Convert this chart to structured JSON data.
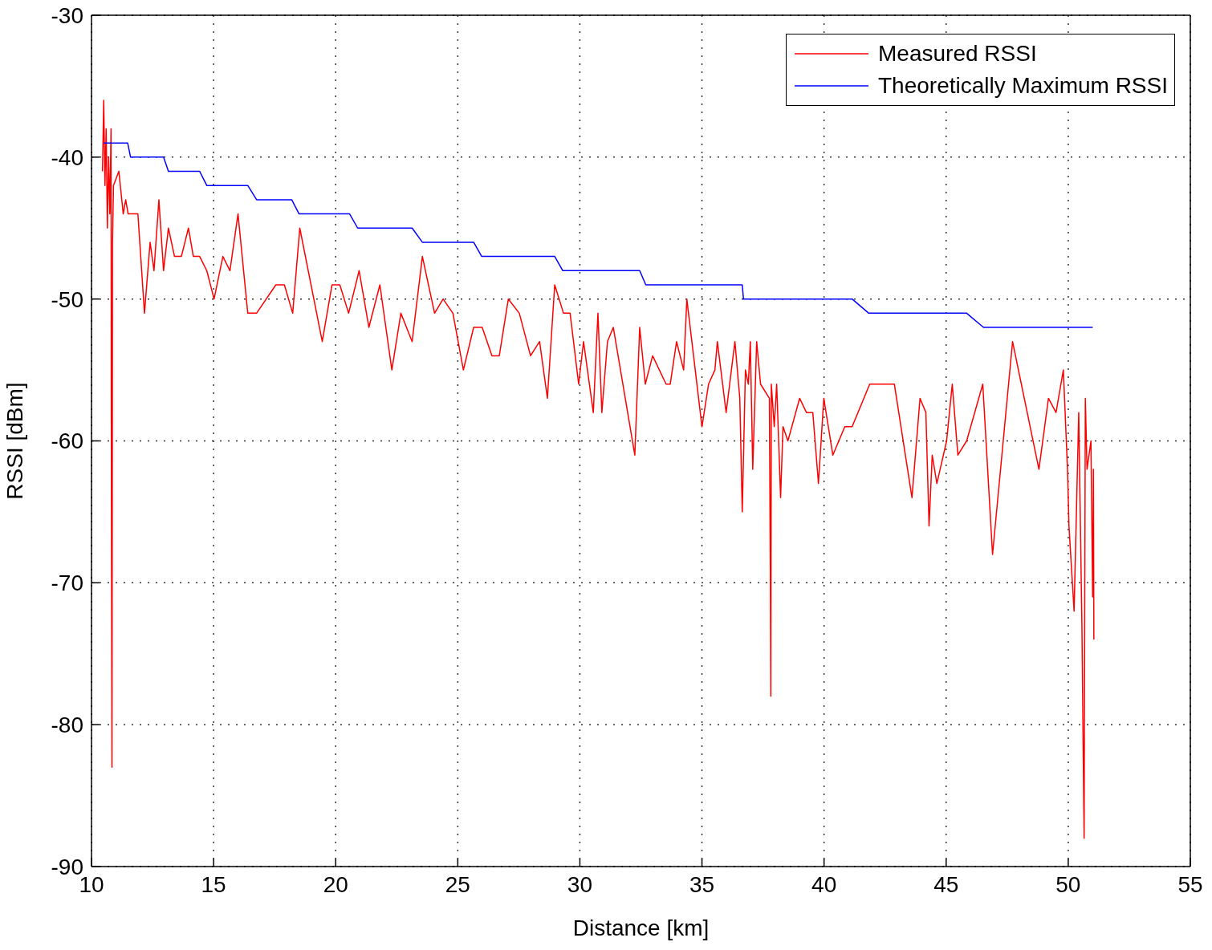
{
  "chart_data": {
    "type": "line",
    "xlabel": "Distance [km]",
    "ylabel": "RSSI [dBm]",
    "xlim": [
      10,
      55
    ],
    "xticks": [
      10,
      15,
      20,
      25,
      30,
      35,
      40,
      45,
      50,
      55
    ],
    "ylim": [
      -90,
      -30
    ],
    "yticks": [
      -90,
      -80,
      -70,
      -60,
      -50,
      -40,
      -30
    ],
    "grid": true,
    "legend": "top right",
    "marker": "none",
    "line_style": "solid",
    "series": [
      {
        "name": "Measured RSSI",
        "color": "#ff0000",
        "x": [
          10.45,
          10.5,
          10.55,
          10.6,
          10.65,
          10.7,
          10.75,
          10.8,
          10.81,
          10.82,
          10.83,
          10.84,
          10.86,
          10.9,
          11.12,
          11.3,
          11.4,
          11.5,
          11.9,
          12.17,
          12.4,
          12.56,
          12.76,
          12.95,
          13.15,
          13.4,
          13.68,
          13.97,
          14.17,
          14.43,
          14.72,
          15.02,
          15.38,
          15.67,
          16.0,
          16.4,
          16.76,
          17.55,
          17.9,
          18.24,
          18.53,
          19.45,
          19.85,
          20.17,
          20.53,
          20.96,
          21.36,
          21.81,
          22.3,
          22.67,
          23.13,
          23.55,
          24.05,
          24.4,
          24.8,
          25.23,
          25.65,
          26.0,
          26.4,
          26.7,
          27.07,
          27.52,
          27.98,
          28.35,
          28.67,
          28.97,
          29.33,
          29.6,
          29.95,
          30.15,
          30.55,
          30.74,
          30.9,
          31.13,
          31.37,
          32.25,
          32.45,
          32.68,
          32.98,
          33.53,
          33.7,
          33.96,
          34.25,
          34.38,
          35.0,
          35.27,
          35.53,
          35.63,
          35.99,
          36.35,
          36.55,
          36.65,
          36.78,
          36.9,
          36.98,
          37.08,
          37.24,
          37.4,
          37.76,
          37.8,
          37.82,
          37.84,
          37.96,
          38.06,
          38.22,
          38.32,
          38.52,
          39.0,
          39.28,
          39.54,
          39.77,
          39.99,
          40.36,
          40.85,
          41.15,
          41.87,
          42.88,
          43.6,
          43.93,
          44.17,
          44.3,
          44.43,
          44.62,
          45.02,
          45.25,
          45.48,
          45.84,
          46.5,
          46.9,
          47.72,
          48.8,
          49.19,
          49.5,
          49.8,
          49.97,
          50.03,
          50.24,
          50.43,
          50.56,
          50.62,
          50.65,
          50.7,
          50.77,
          50.93,
          51.0,
          51.03,
          51.05
        ],
        "values": [
          -41,
          -36,
          -42,
          -38,
          -45,
          -40,
          -44,
          -38,
          -57,
          -68,
          -76,
          -83,
          -46,
          -42,
          -41,
          -44,
          -43,
          -44,
          -44,
          -51,
          -46,
          -48,
          -43,
          -48,
          -45,
          -47,
          -47,
          -45,
          -47,
          -47,
          -48,
          -50,
          -47,
          -48,
          -44,
          -51,
          -51,
          -49,
          -49,
          -51,
          -45,
          -53,
          -49,
          -49,
          -51,
          -48,
          -52,
          -49,
          -55,
          -51,
          -53,
          -47,
          -51,
          -50,
          -51,
          -55,
          -52,
          -52,
          -54,
          -54,
          -50,
          -51,
          -54,
          -53,
          -57,
          -49,
          -51,
          -51,
          -56,
          -53,
          -58,
          -51,
          -58,
          -53,
          -52,
          -61,
          -52,
          -56,
          -54,
          -56,
          -56,
          -53,
          -55,
          -50,
          -59,
          -56,
          -55,
          -53,
          -58,
          -53,
          -57,
          -65,
          -55,
          -56,
          -53,
          -62,
          -53,
          -56,
          -57,
          -69,
          -78,
          -56,
          -59,
          -56,
          -64,
          -59,
          -60,
          -57,
          -58,
          -58,
          -63,
          -57,
          -61,
          -59,
          -59,
          -56,
          -56,
          -64,
          -57,
          -58,
          -66,
          -61,
          -63,
          -60,
          -56,
          -61,
          -60,
          -56,
          -68,
          -53,
          -62,
          -57,
          -58,
          -55,
          -62,
          -66,
          -72,
          -58,
          -73,
          -83,
          -88,
          -57,
          -62,
          -60,
          -71,
          -62,
          -74
        ]
      },
      {
        "name": "Theoretically Maximum RSSI",
        "color": "#0000ff",
        "x": [
          10.5,
          11.48,
          11.6,
          12.95,
          13.15,
          14.43,
          14.72,
          16.4,
          16.76,
          18.2,
          18.5,
          20.57,
          20.9,
          23.13,
          23.55,
          25.65,
          25.98,
          28.97,
          29.3,
          32.45,
          32.7,
          36.65,
          36.7,
          41.15,
          41.83,
          45.84,
          46.53,
          51.0
        ],
        "values": [
          -39,
          -39,
          -40,
          -40,
          -41,
          -41,
          -42,
          -42,
          -43,
          -43,
          -44,
          -44,
          -45,
          -45,
          -46,
          -46,
          -47,
          -47,
          -48,
          -48,
          -49,
          -49,
          -50,
          -50,
          -51,
          -51,
          -52,
          -52
        ]
      }
    ]
  }
}
